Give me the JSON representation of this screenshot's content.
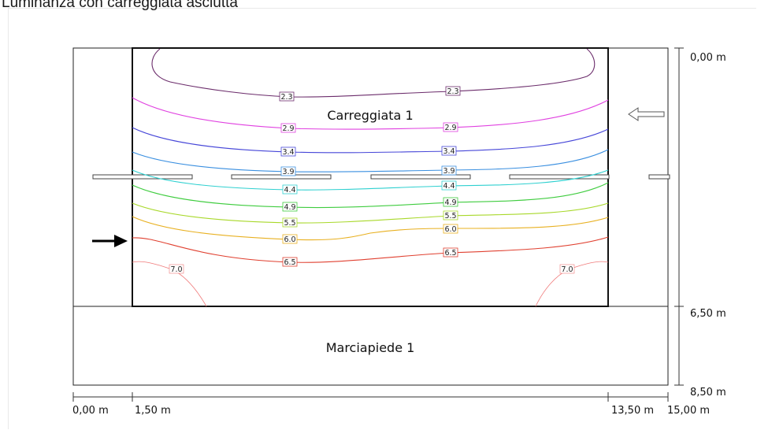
{
  "title": "Luminanza con carreggiata asciutta",
  "areas": {
    "roadway": "Carreggiata 1",
    "sidewalk": "Marciapiede 1"
  },
  "x_dimensions": [
    "0,00 m",
    "1,50 m",
    "13,50 m",
    "15,00 m"
  ],
  "y_dimensions": [
    "0,00 m",
    "6,50 m",
    "8,50 m"
  ],
  "colors": {
    "2.3": "#6b2c6b",
    "2.9": "#e040e0",
    "3.4": "#4646d8",
    "3.9": "#3a8fe0",
    "4.4": "#2fd0d0",
    "4.9": "#3fcc3f",
    "5.5": "#a8d82a",
    "6.0": "#e8b020",
    "6.5": "#e04030",
    "7.0": "#f07a7a"
  },
  "isolines": [
    {
      "value": "2.3",
      "labels": [
        "2.3",
        "2.3"
      ]
    },
    {
      "value": "2.9",
      "labels": [
        "2.9",
        "2.9"
      ]
    },
    {
      "value": "3.4",
      "labels": [
        "3.4",
        "3.4"
      ]
    },
    {
      "value": "3.9",
      "labels": [
        "3.9",
        "3.9"
      ]
    },
    {
      "value": "4.4",
      "labels": [
        "4.4",
        "4.4"
      ]
    },
    {
      "value": "4.9",
      "labels": [
        "4.9",
        "4.9"
      ]
    },
    {
      "value": "5.5",
      "labels": [
        "5.5",
        "5.5"
      ]
    },
    {
      "value": "6.0",
      "labels": [
        "6.0",
        "6.0"
      ]
    },
    {
      "value": "6.5",
      "labels": [
        "6.5",
        "6.5"
      ]
    },
    {
      "value": "7.0",
      "labels": [
        "7.0",
        "7.0"
      ]
    }
  ]
}
